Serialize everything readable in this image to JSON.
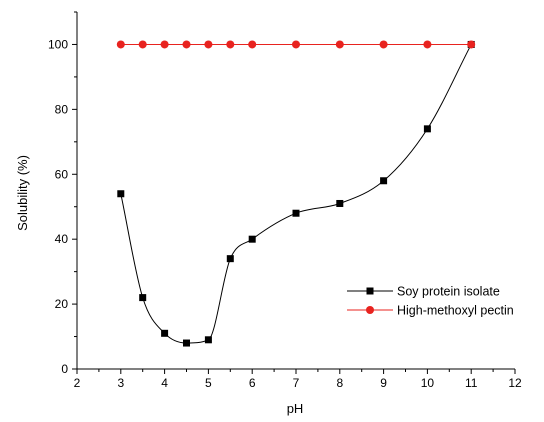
{
  "chart_data": {
    "type": "line",
    "xlabel": "pH",
    "ylabel": "Solubility (%)",
    "xlim": [
      2,
      12
    ],
    "ylim": [
      0,
      110
    ],
    "x_ticks": [
      2,
      3,
      4,
      5,
      6,
      7,
      8,
      9,
      10,
      11,
      12
    ],
    "y_ticks": [
      0,
      20,
      40,
      60,
      80,
      100
    ],
    "grid": false,
    "legend_position": "lower-right",
    "series": [
      {
        "name": "Soy protein isolate",
        "color": "#000000",
        "marker": "square",
        "smooth": true,
        "points": [
          {
            "x": 3,
            "y": 54
          },
          {
            "x": 3.5,
            "y": 22
          },
          {
            "x": 4,
            "y": 11
          },
          {
            "x": 4.5,
            "y": 8
          },
          {
            "x": 5,
            "y": 9
          },
          {
            "x": 5.5,
            "y": 34
          },
          {
            "x": 6,
            "y": 40
          },
          {
            "x": 7,
            "y": 48
          },
          {
            "x": 8,
            "y": 51
          },
          {
            "x": 9,
            "y": 58
          },
          {
            "x": 10,
            "y": 74
          },
          {
            "x": 11,
            "y": 100
          }
        ]
      },
      {
        "name": "High-methoxyl pectin",
        "color": "#e8231f",
        "marker": "circle",
        "smooth": false,
        "points": [
          {
            "x": 3,
            "y": 100
          },
          {
            "x": 3.5,
            "y": 100
          },
          {
            "x": 4,
            "y": 100
          },
          {
            "x": 4.5,
            "y": 100
          },
          {
            "x": 5,
            "y": 100
          },
          {
            "x": 5.5,
            "y": 100
          },
          {
            "x": 6,
            "y": 100
          },
          {
            "x": 7,
            "y": 100
          },
          {
            "x": 8,
            "y": 100
          },
          {
            "x": 9,
            "y": 100
          },
          {
            "x": 10,
            "y": 100
          },
          {
            "x": 11,
            "y": 100
          }
        ]
      }
    ]
  }
}
